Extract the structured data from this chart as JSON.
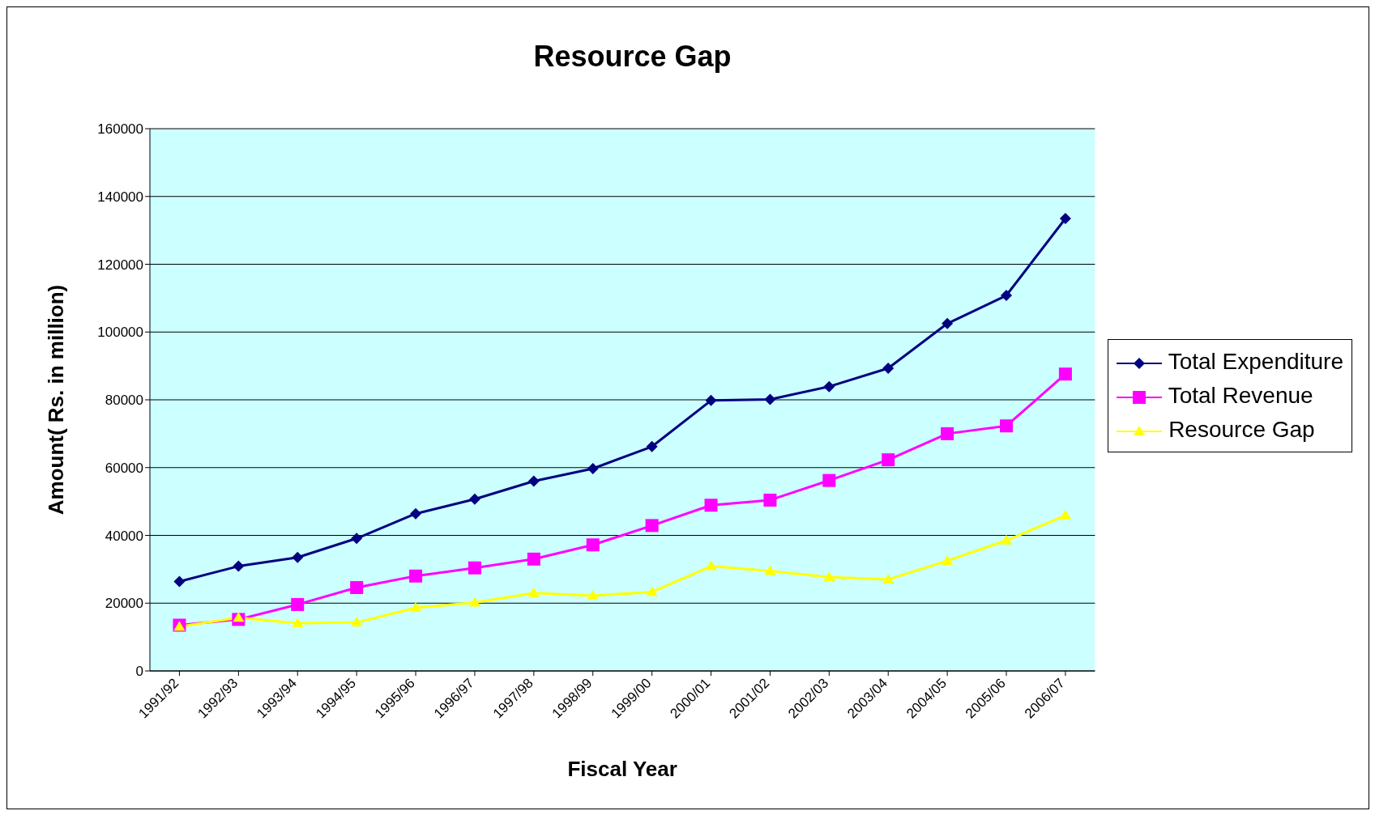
{
  "chart_data": {
    "type": "line",
    "title": "Resource Gap",
    "xlabel": "Fiscal Year",
    "ylabel": "Amount( Rs. in million)",
    "categories": [
      "1991/92",
      "1992/93",
      "1993/94",
      "1994/95",
      "1995/96",
      "1996/97",
      "1997/98",
      "1998/99",
      "1999/00",
      "2000/01",
      "2001/02",
      "2002/03",
      "2003/04",
      "2004/05",
      "2005/06",
      "2006/07"
    ],
    "series": [
      {
        "name": "Total Expenditure",
        "color": "#000080",
        "marker": "diamond",
        "values": [
          26400,
          30900,
          33500,
          39100,
          46400,
          50700,
          56000,
          59700,
          66200,
          79800,
          80100,
          83900,
          89300,
          102500,
          110800,
          133500
        ]
      },
      {
        "name": "Total Revenue",
        "color": "#ff00ff",
        "marker": "square",
        "values": [
          13500,
          15200,
          19600,
          24600,
          28000,
          30400,
          33000,
          37200,
          42900,
          48900,
          50400,
          56200,
          62300,
          70000,
          72300,
          87600
        ]
      },
      {
        "name": "Resource Gap",
        "color": "#ffff00",
        "marker": "triangle",
        "values": [
          13100,
          15700,
          14100,
          14300,
          18600,
          20200,
          23000,
          22200,
          23300,
          30900,
          29500,
          27700,
          27000,
          32500,
          38500,
          45900
        ]
      }
    ],
    "ylim": [
      0,
      160000
    ],
    "yticks": [
      0,
      20000,
      40000,
      60000,
      80000,
      100000,
      120000,
      140000,
      160000
    ],
    "grid": "y",
    "legend": "right"
  }
}
